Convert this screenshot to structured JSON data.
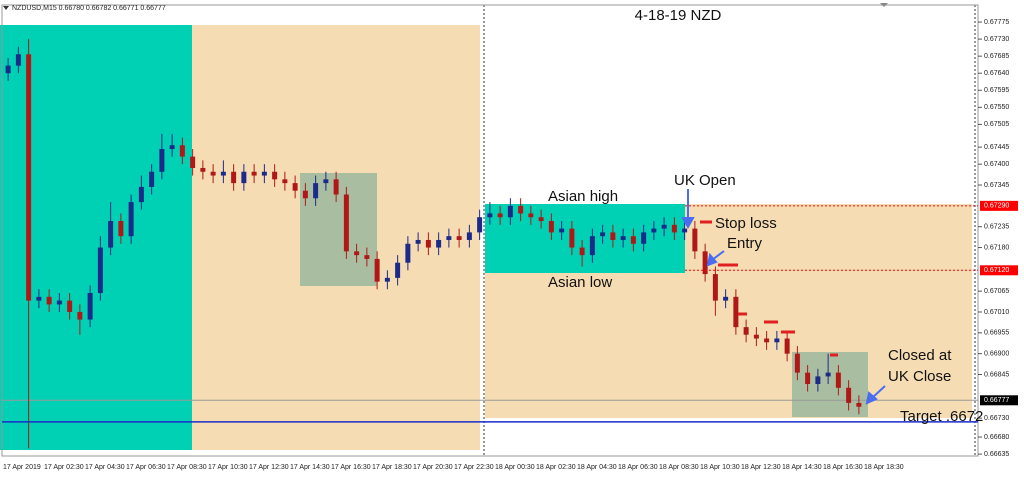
{
  "chart_data": {
    "type": "candlestick",
    "header": "NZDUSD,M15  0.66780 0.66782 0.66771 0.66777",
    "title": "4-18-19  NZD",
    "up_color": "#1c2a8a",
    "down_color": "#b01818",
    "xtick_labels": [
      "17 Apr 2019",
      "17 Apr 02:30",
      "17 Apr 04:30",
      "17 Apr 06:30",
      "17 Apr 08:30",
      "17 Apr 10:30",
      "17 Apr 12:30",
      "17 Apr 14:30",
      "17 Apr 16:30",
      "17 Apr 18:30",
      "17 Apr 20:30",
      "17 Apr 22:30",
      "18 Apr 00:30",
      "18 Apr 02:30",
      "18 Apr 04:30",
      "18 Apr 06:30",
      "18 Apr 08:30",
      "18 Apr 10:30",
      "18 Apr 12:30",
      "18 Apr 14:30",
      "18 Apr 16:30",
      "18 Apr 18:30"
    ],
    "open": [
      0.6764,
      0.6766,
      0.6769,
      0.6704,
      0.6705,
      0.6703,
      0.6704,
      0.6701,
      0.6699,
      0.6706,
      0.6718,
      0.6725,
      0.6721,
      0.673,
      0.6734,
      0.6738,
      0.6744,
      0.6745,
      0.6742,
      0.6739,
      0.6738,
      0.6737,
      0.6738,
      0.6735,
      0.6738,
      0.6737,
      0.6738,
      0.6736,
      0.6735,
      0.6733,
      0.6731,
      0.6735,
      0.6736,
      0.6732,
      0.6717,
      0.6716,
      0.6715,
      0.6709,
      0.671,
      0.6714,
      0.6719,
      0.672,
      0.6718,
      0.672,
      0.6721,
      0.672,
      0.6722,
      0.6726,
      0.6727,
      0.6726,
      0.6729,
      0.6727,
      0.6726,
      0.6725,
      0.6722,
      0.6723,
      0.6718,
      0.6716,
      0.6721,
      0.6722,
      0.672,
      0.6721,
      0.6719,
      0.6722,
      0.6723,
      0.6724,
      0.6722,
      0.6723,
      0.6717,
      0.6711,
      0.6704,
      0.6705,
      0.6697,
      0.6695,
      0.6694,
      0.6693,
      0.6694,
      0.669,
      0.6685,
      0.6682,
      0.6684,
      0.6685,
      0.6681,
      0.6677,
      0.6678
    ],
    "high": [
      0.6768,
      0.6771,
      0.6773,
      0.6707,
      0.6707,
      0.6706,
      0.6706,
      0.6703,
      0.6708,
      0.6721,
      0.673,
      0.6727,
      0.6732,
      0.6737,
      0.674,
      0.6748,
      0.6748,
      0.6747,
      0.6744,
      0.6741,
      0.674,
      0.6741,
      0.674,
      0.674,
      0.674,
      0.674,
      0.674,
      0.6738,
      0.6737,
      0.6735,
      0.6737,
      0.6738,
      0.6738,
      0.6734,
      0.6719,
      0.6718,
      0.6717,
      0.6712,
      0.6716,
      0.6721,
      0.6722,
      0.6722,
      0.6722,
      0.6723,
      0.6723,
      0.6724,
      0.6728,
      0.673,
      0.6729,
      0.6731,
      0.6731,
      0.6729,
      0.6728,
      0.6727,
      0.6725,
      0.6725,
      0.672,
      0.6723,
      0.6724,
      0.6724,
      0.6723,
      0.6723,
      0.6724,
      0.6725,
      0.6726,
      0.6726,
      0.6725,
      0.6725,
      0.6719,
      0.6713,
      0.6707,
      0.6707,
      0.6699,
      0.6697,
      0.6696,
      0.6696,
      0.6696,
      0.6692,
      0.6687,
      0.6686,
      0.669,
      0.6687,
      0.6683,
      0.6679,
      0.66782
    ],
    "low": [
      0.6762,
      0.6764,
      0.6665,
      0.6702,
      0.6701,
      0.6701,
      0.6699,
      0.6695,
      0.6697,
      0.6704,
      0.6716,
      0.6719,
      0.6719,
      0.6728,
      0.6732,
      0.6736,
      0.6742,
      0.674,
      0.6737,
      0.6736,
      0.6735,
      0.6735,
      0.6733,
      0.6733,
      0.6735,
      0.6735,
      0.6734,
      0.6733,
      0.6731,
      0.6729,
      0.6729,
      0.6733,
      0.673,
      0.6715,
      0.6714,
      0.6713,
      0.6707,
      0.6707,
      0.6708,
      0.6712,
      0.6717,
      0.6716,
      0.6716,
      0.6718,
      0.6718,
      0.6718,
      0.672,
      0.6724,
      0.6724,
      0.6724,
      0.6725,
      0.6724,
      0.6723,
      0.672,
      0.672,
      0.6716,
      0.6713,
      0.6714,
      0.6719,
      0.6718,
      0.6718,
      0.6717,
      0.6717,
      0.672,
      0.6721,
      0.672,
      0.672,
      0.6715,
      0.6709,
      0.67,
      0.6702,
      0.6695,
      0.6693,
      0.6692,
      0.6691,
      0.6691,
      0.6688,
      0.6683,
      0.668,
      0.668,
      0.6682,
      0.6679,
      0.6675,
      0.6674,
      0.66771
    ],
    "close": [
      0.6766,
      0.6769,
      0.6704,
      0.6705,
      0.6703,
      0.6704,
      0.6701,
      0.6699,
      0.6706,
      0.6718,
      0.6725,
      0.6721,
      0.673,
      0.6734,
      0.6738,
      0.6744,
      0.6745,
      0.6742,
      0.6739,
      0.6738,
      0.6737,
      0.6738,
      0.6735,
      0.6738,
      0.6737,
      0.6738,
      0.6736,
      0.6735,
      0.6733,
      0.6731,
      0.6735,
      0.6736,
      0.6732,
      0.6717,
      0.6716,
      0.6715,
      0.6709,
      0.671,
      0.6714,
      0.6719,
      0.672,
      0.6718,
      0.672,
      0.6721,
      0.672,
      0.6722,
      0.6726,
      0.6727,
      0.6726,
      0.6729,
      0.6727,
      0.6726,
      0.6725,
      0.6722,
      0.6723,
      0.6718,
      0.6716,
      0.6721,
      0.6722,
      0.672,
      0.6721,
      0.6719,
      0.6722,
      0.6723,
      0.6724,
      0.6722,
      0.6723,
      0.6717,
      0.6711,
      0.6704,
      0.6705,
      0.6697,
      0.6695,
      0.6694,
      0.6693,
      0.6694,
      0.669,
      0.6685,
      0.6682,
      0.6684,
      0.6685,
      0.6681,
      0.6677,
      0.6676,
      0.66777
    ],
    "ylim": [
      0.6663,
      0.6782
    ],
    "yticks": [
      {
        "value": 0.67775,
        "label": "0.67775"
      },
      {
        "value": 0.6773,
        "label": "0.67730"
      },
      {
        "value": 0.67685,
        "label": "0.67685"
      },
      {
        "value": 0.6764,
        "label": "0.67640"
      },
      {
        "value": 0.67595,
        "label": "0.67595"
      },
      {
        "value": 0.6755,
        "label": "0.67550"
      },
      {
        "value": 0.67505,
        "label": "0.67505"
      },
      {
        "value": 0.67445,
        "label": "0.67445"
      },
      {
        "value": 0.674,
        "label": "0.67400"
      },
      {
        "value": 0.67345,
        "label": "0.67345"
      },
      {
        "value": 0.67235,
        "label": "0.67235"
      },
      {
        "value": 0.6718,
        "label": "0.67180"
      },
      {
        "value": 0.67065,
        "label": "0.67065"
      },
      {
        "value": 0.6701,
        "label": "0.67010"
      },
      {
        "value": 0.66955,
        "label": "0.66955"
      },
      {
        "value": 0.669,
        "label": "0.66900"
      },
      {
        "value": 0.66845,
        "label": "0.66845"
      },
      {
        "value": 0.6673,
        "label": "0.66730"
      },
      {
        "value": 0.6668,
        "label": "0.66680"
      },
      {
        "value": 0.66635,
        "label": "0.66635"
      }
    ],
    "levels": [
      {
        "value": 0.6729,
        "label": "0.67290",
        "color": "#ff0000"
      },
      {
        "value": 0.6712,
        "label": "0.67120",
        "color": "#ff0000"
      }
    ],
    "current_price": {
      "value": 0.66777,
      "label": "0.66777",
      "color": "#000000"
    },
    "target": {
      "value": 0.6672,
      "color": "#1a2cc8"
    },
    "annotations": [
      "Asian high",
      "Asian low",
      "UK Open",
      "Stop loss",
      "Entry",
      "Closed at",
      "UK Close",
      "Target  .6672"
    ]
  }
}
